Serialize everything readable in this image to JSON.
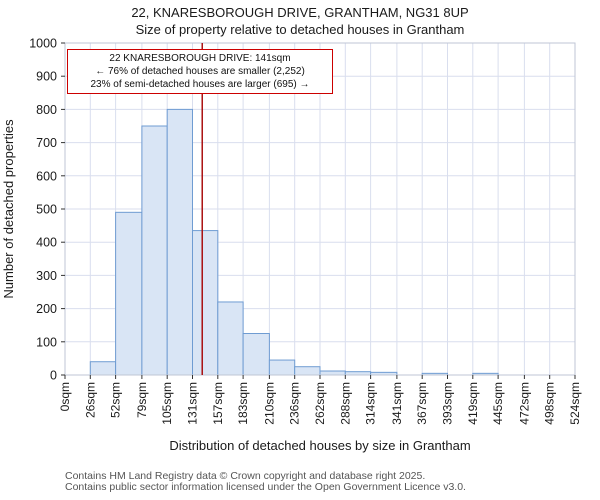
{
  "chart_data": {
    "type": "bar",
    "title": "22, KNARESBOROUGH DRIVE, GRANTHAM, NG31 8UP",
    "subtitle": "Size of property relative to detached houses in Grantham",
    "xlabel": "Distribution of detached houses by size in Grantham",
    "ylabel": "Number of detached properties",
    "x_tick_labels": [
      "0sqm",
      "26sqm",
      "52sqm",
      "79sqm",
      "105sqm",
      "131sqm",
      "157sqm",
      "183sqm",
      "210sqm",
      "236sqm",
      "262sqm",
      "288sqm",
      "314sqm",
      "341sqm",
      "367sqm",
      "393sqm",
      "419sqm",
      "445sqm",
      "472sqm",
      "498sqm",
      "524sqm"
    ],
    "bin_edges_sqm": [
      0,
      26,
      52,
      79,
      105,
      131,
      157,
      183,
      210,
      236,
      262,
      288,
      314,
      341,
      367,
      393,
      419,
      445,
      472,
      498,
      524
    ],
    "values": [
      0,
      40,
      490,
      750,
      800,
      435,
      220,
      125,
      45,
      25,
      12,
      10,
      8,
      0,
      5,
      0,
      5,
      0,
      0,
      0
    ],
    "ylim": [
      0,
      1000
    ],
    "y_ticks": [
      0,
      100,
      200,
      300,
      400,
      500,
      600,
      700,
      800,
      900,
      1000
    ],
    "grid": true,
    "legend": "none",
    "marker_value_sqm": 141,
    "annotation": {
      "line1": "22 KNARESBOROUGH DRIVE: 141sqm",
      "line2": "← 76% of detached houses are smaller (2,252)",
      "line3": "23% of semi-detached houses are larger (695) →"
    },
    "colors": {
      "bar_fill": "#d9e5f5",
      "bar_stroke": "#6f9cd2",
      "grid": "#d9deee",
      "marker_line": "#aa1111",
      "annotation_border": "#cc0000"
    }
  },
  "footer": {
    "line1": "Contains HM Land Registry data © Crown copyright and database right 2025.",
    "line2": "Contains public sector information licensed under the Open Government Licence v3.0."
  }
}
